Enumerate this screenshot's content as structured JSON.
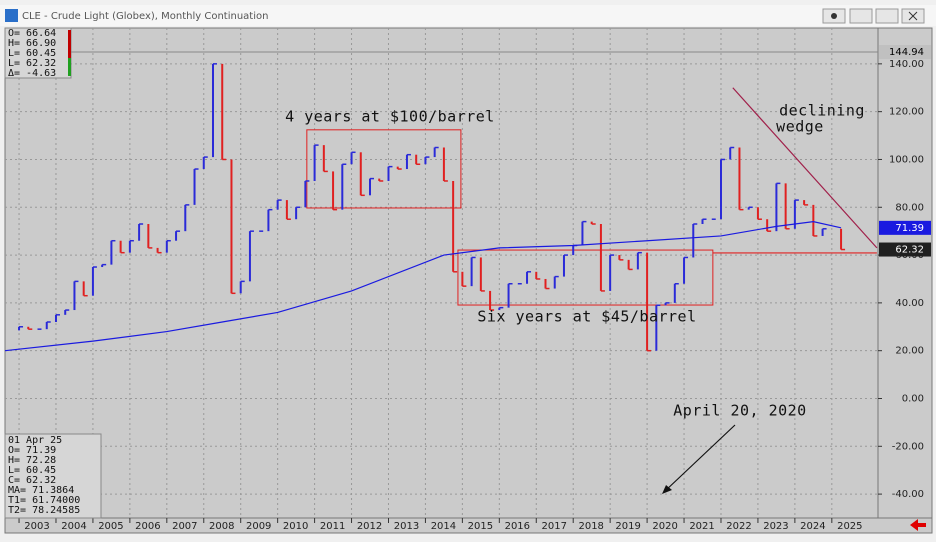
{
  "chart_data": {
    "type": "candle",
    "title": "CLE - Crude Light (Globex), Monthly Continuation",
    "x": [
      2003.0,
      2003.25,
      2003.5,
      2003.75,
      2004.0,
      2004.25,
      2004.5,
      2004.75,
      2005.0,
      2005.25,
      2005.5,
      2005.75,
      2006.0,
      2006.25,
      2006.5,
      2006.75,
      2007.0,
      2007.25,
      2007.5,
      2007.75,
      2008.0,
      2008.25,
      2008.5,
      2008.75,
      2009.0,
      2009.25,
      2009.5,
      2009.75,
      2010.0,
      2010.25,
      2010.5,
      2010.75,
      2011.0,
      2011.25,
      2011.5,
      2011.75,
      2012.0,
      2012.25,
      2012.5,
      2012.75,
      2013.0,
      2013.25,
      2013.5,
      2013.75,
      2014.0,
      2014.25,
      2014.5,
      2014.75,
      2015.0,
      2015.25,
      2015.5,
      2015.75,
      2016.0,
      2016.25,
      2016.5,
      2016.75,
      2017.0,
      2017.25,
      2017.5,
      2017.75,
      2018.0,
      2018.25,
      2018.5,
      2018.75,
      2019.0,
      2019.25,
      2019.5,
      2019.75,
      2020.0,
      2020.25,
      2020.5,
      2020.75,
      2021.0,
      2021.25,
      2021.5,
      2021.75,
      2022.0,
      2022.25,
      2022.5,
      2022.75,
      2023.0,
      2023.25,
      2023.5,
      2023.75,
      2024.0,
      2024.25,
      2024.5,
      2024.75,
      2025.25
    ],
    "values": [
      30,
      29,
      29,
      32,
      35,
      37,
      49,
      43,
      55,
      56,
      66,
      61,
      66,
      73,
      63,
      61,
      66,
      70,
      81,
      96,
      101,
      140,
      100,
      44,
      49,
      70,
      70,
      79,
      83,
      75,
      80,
      91,
      106,
      95,
      79,
      98,
      103,
      85,
      92,
      91,
      97,
      96,
      102,
      98,
      101,
      105,
      91,
      53,
      47,
      59,
      45,
      37,
      38,
      48,
      48,
      53,
      50,
      46,
      51,
      60,
      64,
      74,
      73,
      45,
      60,
      58,
      54,
      61,
      20,
      39,
      40,
      48,
      59,
      73,
      75,
      75,
      100,
      105,
      79,
      80,
      75,
      70,
      90,
      71,
      83,
      81,
      68,
      71,
      62.32
    ],
    "up_color": "#2a2ad8",
    "down_color": "#e02020",
    "ma": {
      "x": [
        2002.62,
        2005,
        2007,
        2008.5,
        2010,
        2012,
        2014.5,
        2016,
        2018,
        2020,
        2022,
        2023.5,
        2024.5,
        2025.25
      ],
      "values": [
        20,
        24,
        28,
        32,
        36,
        45,
        60,
        63,
        64,
        66,
        68,
        72,
        74,
        71.4
      ],
      "color": "#1a1ae0"
    },
    "boxes": [
      {
        "xlim": [
          2010.79,
          2014.96
        ],
        "ylim": [
          79.7,
          112.4
        ]
      },
      {
        "xlim": [
          2014.88,
          2021.78
        ],
        "ylim": [
          39.1,
          62.1
        ]
      }
    ],
    "wedge": [
      {
        "x": [
          2022.32,
          2026.22
        ],
        "values": [
          130,
          63
        ]
      },
      {
        "x": [
          2021.78,
          2026.22
        ],
        "values": [
          60.9,
          60.9
        ]
      }
    ],
    "ref_line": 144.94,
    "price_tags": [
      {
        "value": 144.94,
        "color": "#c0c0c0",
        "text_color": "#000"
      },
      {
        "value": 71.39,
        "color": "#1a1ae0",
        "text_color": "#fff"
      },
      {
        "value": 62.32,
        "color": "#202020",
        "text_color": "#fff"
      }
    ],
    "annotations": [
      "4 years at $100/barrel",
      "Six years at $45/barrel",
      "declining",
      "wedge",
      "April 20, 2020"
    ],
    "info_top": [
      "O=   66.64",
      "H=   66.90",
      "L=   60.45",
      "L=   62.32",
      "Δ=   -4.63"
    ],
    "info_bottom": [
      "01 Apr 25",
      "O=        71.39",
      "H=        72.28",
      "L=        60.45",
      "C=        62.32",
      "MA=     71.3864",
      "T1=    61.74000",
      "T2=    78.24585"
    ],
    "xlim": [
      2002.62,
      2026.25
    ],
    "xticks": [
      2003,
      2004,
      2005,
      2006,
      2007,
      2008,
      2009,
      2010,
      2011,
      2012,
      2013,
      2014,
      2015,
      2016,
      2017,
      2018,
      2019,
      2020,
      2021,
      2022,
      2023,
      2024,
      2025
    ],
    "ylim": [
      -50,
      155
    ],
    "yticks": [
      {
        "value": 140,
        "label": "140.00"
      },
      {
        "value": 120,
        "label": "120.00"
      },
      {
        "value": 100,
        "label": "100.00"
      },
      {
        "value": 80,
        "label": "80.00"
      },
      {
        "value": 60,
        "label": "60.00"
      },
      {
        "value": 40,
        "label": "40.00"
      },
      {
        "value": 20,
        "label": "20.00"
      },
      {
        "value": 0,
        "label": "0.00"
      },
      {
        "value": -20,
        "label": "-20.00"
      },
      {
        "value": -40,
        "label": "-40.00"
      }
    ],
    "grid": true
  }
}
